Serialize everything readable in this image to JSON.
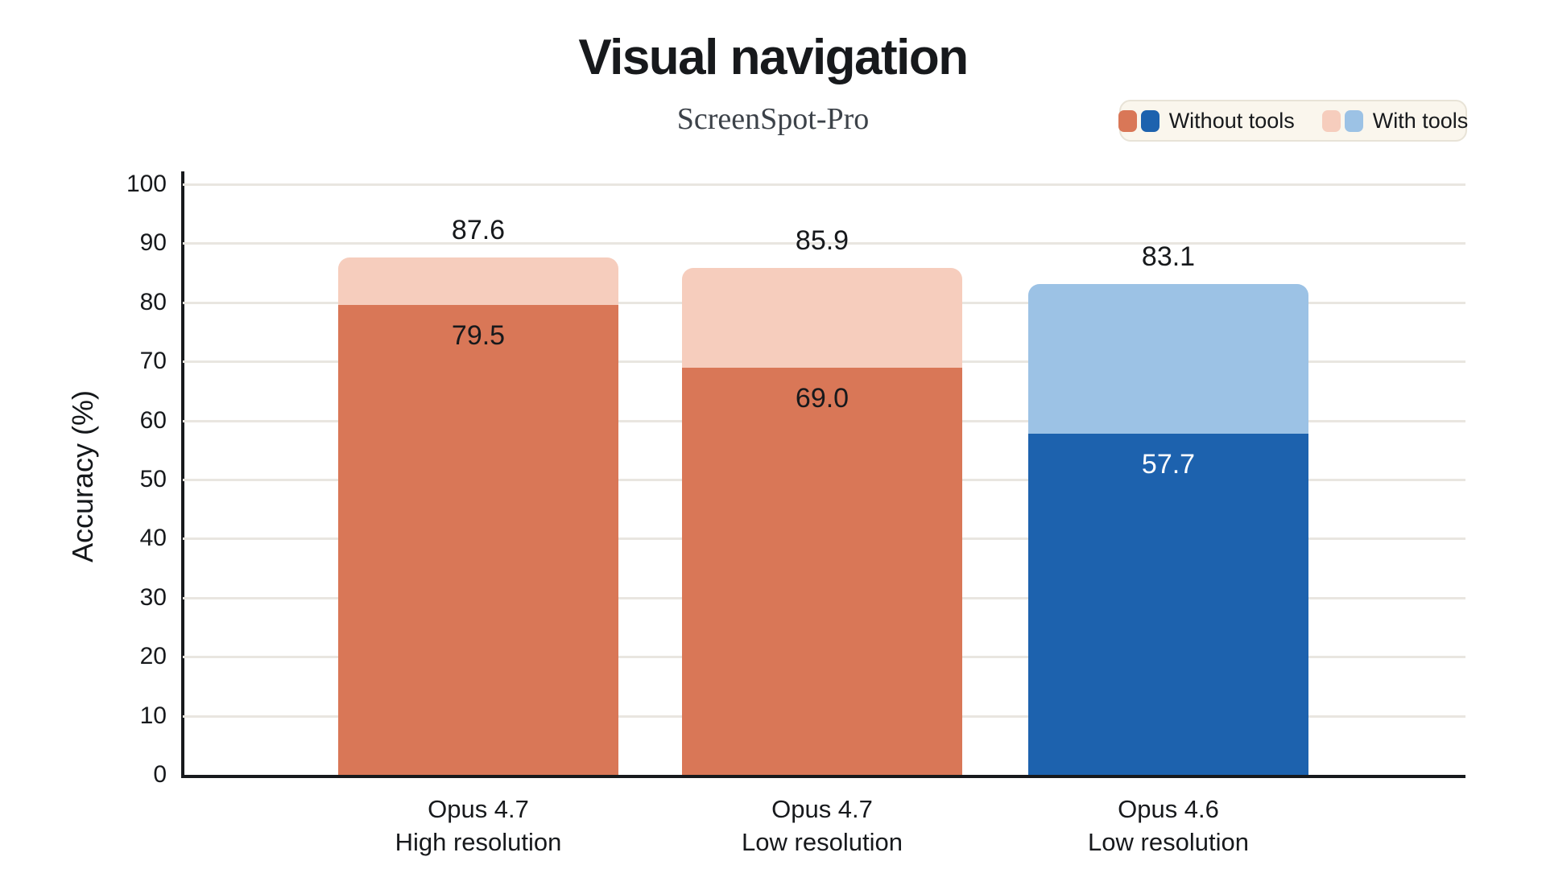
{
  "title": "Visual navigation",
  "subtitle": "ScreenSpot-Pro",
  "legend": {
    "position": "top-right",
    "items": [
      {
        "label": "Without tools",
        "swatches": [
          "#d97757",
          "#1d62ae"
        ]
      },
      {
        "label": "With tools",
        "swatches": [
          "#f6cdbd",
          "#9cc2e5"
        ]
      }
    ]
  },
  "chart_data": {
    "type": "bar",
    "variant": "overlay",
    "title": "Visual navigation",
    "subtitle": "ScreenSpot-Pro",
    "xlabel": "",
    "ylabel": "Accuracy (%)",
    "ylim": [
      0,
      100
    ],
    "yticks": [
      0,
      10,
      20,
      30,
      40,
      50,
      60,
      70,
      80,
      90,
      100
    ],
    "grid": true,
    "legend_position": "top-right",
    "categories": [
      {
        "line1": "Opus 4.7",
        "line2": "High resolution"
      },
      {
        "line1": "Opus 4.7",
        "line2": "Low resolution"
      },
      {
        "line1": "Opus 4.6",
        "line2": "Low resolution"
      }
    ],
    "series": [
      {
        "name": "Without tools",
        "values": [
          79.5,
          69.0,
          57.7
        ],
        "colors": [
          "#d97757",
          "#d97757",
          "#1d62ae"
        ],
        "label_colors": [
          "#17191c",
          "#17191c",
          "#ffffff"
        ]
      },
      {
        "name": "With tools",
        "values": [
          87.6,
          85.9,
          83.1
        ],
        "colors": [
          "#f6cdbd",
          "#f6cdbd",
          "#9cc2e5"
        ]
      }
    ],
    "colors": {
      "background": "#ffffff",
      "axis": "#17191c",
      "gridline": "#e9e6e0",
      "legend_background": "#faf6ed",
      "legend_border": "#e8e3d7",
      "text": "#17191c",
      "subtitle_text": "#3c4249"
    }
  }
}
